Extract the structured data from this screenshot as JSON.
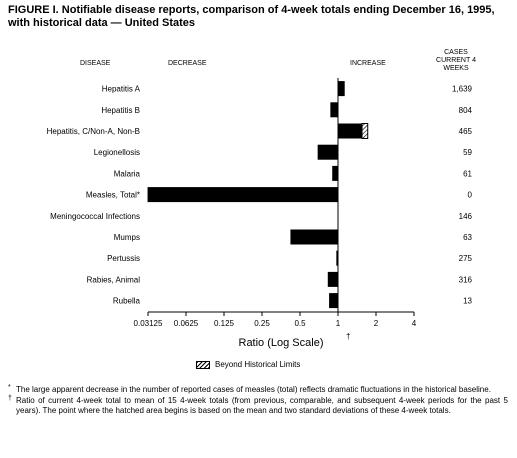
{
  "figure": {
    "title": "FIGURE I. Notifiable disease reports, comparison of 4-week totals ending December 16, 1995, with historical data — United States"
  },
  "headers": {
    "disease": "DISEASE",
    "decrease": "DECREASE",
    "increase": "INCREASE",
    "cases": "CASES CURRENT 4 WEEKS"
  },
  "legend": {
    "label": "Beyond Historical Limits"
  },
  "footnotes": [
    {
      "mark": "*",
      "text": "The large apparent decrease in the number of reported cases of measles (total) reflects dramatic fluctuations in the historical baseline."
    },
    {
      "mark": "†",
      "text": "Ratio of current 4-week total to mean of 15 4-week totals (from previous, comparable, and subsequent 4-week periods for the past 5 years). The point where the hatched area begins is based on the mean and two standard deviations of these 4-week totals."
    }
  ],
  "chart_data": {
    "type": "bar",
    "orientation": "horizontal",
    "xscale": "log2",
    "xlabel": "Ratio (Log Scale)",
    "xlabel_mark": "†",
    "xlim": [
      0.03125,
      4
    ],
    "xticks": [
      "0.03125",
      "0.0625",
      "0.125",
      "0.25",
      "0.5",
      "1",
      "2",
      "4"
    ],
    "xtick_values": [
      0.03125,
      0.0625,
      0.125,
      0.25,
      0.5,
      1,
      2,
      4
    ],
    "baseline": 1,
    "categories": [
      "Hepatitis A",
      "Hepatitis B",
      "Hepatitis, C/Non-A, Non-B",
      "Legionellosis",
      "Malaria",
      "Measles, Total*",
      "Meningococcal Infections",
      "Mumps",
      "Pertussis",
      "Rabies, Animal",
      "Rubella"
    ],
    "ratios": [
      1.13,
      0.87,
      1.72,
      0.69,
      0.9,
      0.031,
      1.0,
      0.42,
      0.97,
      0.83,
      0.85
    ],
    "hatch_start": [
      null,
      null,
      1.55,
      null,
      null,
      null,
      null,
      null,
      null,
      null,
      null
    ],
    "cases": [
      "1,639",
      "804",
      "465",
      "59",
      "61",
      "0",
      "146",
      "63",
      "275",
      "316",
      "13"
    ],
    "colors": {
      "bar": "#000000",
      "hatch_bg": "#ffffff"
    }
  }
}
